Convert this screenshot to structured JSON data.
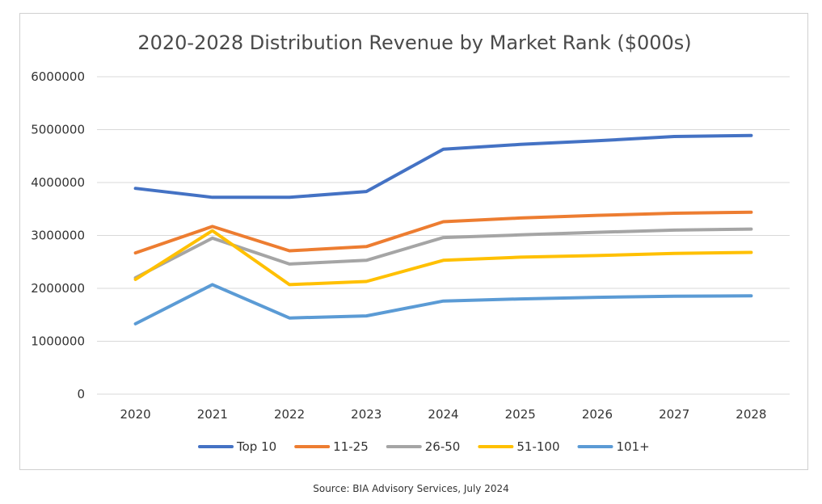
{
  "chart_data": {
    "type": "line",
    "title": "2020-2028 Distribution Revenue by Market Rank ($000s)",
    "categories": [
      "2020",
      "2021",
      "2022",
      "2023",
      "2024",
      "2025",
      "2026",
      "2027",
      "2028"
    ],
    "ylim": [
      0,
      6000000
    ],
    "yticks": [
      "0",
      "1000000",
      "2000000",
      "3000000",
      "4000000",
      "5000000",
      "6000000"
    ],
    "grid": true,
    "legend_position": "bottom",
    "series": [
      {
        "name": "Top 10",
        "color": "#4472C4",
        "values": [
          3890000,
          3720000,
          3720000,
          3830000,
          4630000,
          4720000,
          4790000,
          4870000,
          4890000
        ]
      },
      {
        "name": "11-25",
        "color": "#ED7D31",
        "values": [
          2670000,
          3170000,
          2710000,
          2790000,
          3260000,
          3330000,
          3380000,
          3420000,
          3440000
        ]
      },
      {
        "name": "26-50",
        "color": "#A5A5A5",
        "values": [
          2200000,
          2950000,
          2460000,
          2530000,
          2960000,
          3010000,
          3060000,
          3100000,
          3120000
        ]
      },
      {
        "name": "51-100",
        "color": "#FFC000",
        "values": [
          2170000,
          3090000,
          2070000,
          2130000,
          2530000,
          2590000,
          2620000,
          2660000,
          2680000
        ]
      },
      {
        "name": "101+",
        "color": "#5B9BD5",
        "values": [
          1330000,
          2070000,
          1440000,
          1480000,
          1760000,
          1800000,
          1830000,
          1850000,
          1860000
        ]
      }
    ]
  },
  "source_note": "Source: BIA Advisory Services, July 2024"
}
